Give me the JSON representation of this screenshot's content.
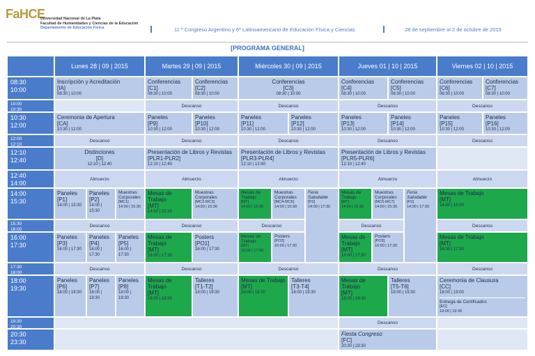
{
  "header": {
    "logo": "FaHCE",
    "university": "Universidad Nacional de La Plata",
    "faculty": "Facultad de Humanidades y Ciencias de la Educación",
    "department": "Departamento de Educación Física",
    "congress": "11 º Congreso Argentino y 6º Latinoamericano de Educación Física y Ciencias",
    "dates": "28 de septiembre al 2 de octubre de 2015"
  },
  "program_title": "[PROGRAMA GENERAL]",
  "days": [
    "Lunes 28 | 09 | 2015",
    "Martes 29 | 09 | 2015",
    "Miércoles 30 | 09 | 2015",
    "Jueves 01 | 10 | 2015",
    "Viernes 02 | 10 | 2015"
  ],
  "rows": [
    {
      "start": "08:30",
      "end": "10:00",
      "cells": [
        {
          "title": "Inscripción y Acreditación",
          "code": "[IA]",
          "time": "08:30 | 10:00"
        },
        {
          "title": "Conferencias",
          "code": "[C1]",
          "time": "08:30 | 10:00"
        },
        {
          "title": "Conferencias",
          "code": "[C2]",
          "time": "08:30 | 10:00"
        },
        {
          "title": "Conferencias",
          "code": "[C3]",
          "time": "08:30 | 10:00"
        },
        {
          "title": "Conferencias",
          "code": "[C4]",
          "time": "08:30 | 10:00"
        },
        {
          "title": "Conferencias",
          "code": "[C5]",
          "time": "08:30 | 10:00"
        },
        {
          "title": "Conferencias",
          "code": "[C6]",
          "time": "08:30 | 10:00"
        },
        {
          "title": "Conferencias",
          "code": "[C7]",
          "time": "08:30 | 10:00"
        }
      ]
    },
    {
      "start": "10:00",
      "end": "10:30",
      "cells": [
        {
          "title": "Descanso"
        },
        {
          "title": "Descanso"
        },
        {
          "title": "Descanso"
        },
        {
          "title": "Descanso"
        }
      ]
    },
    {
      "start": "10:30",
      "end": "12:00",
      "cells": [
        {
          "title": "Ceremonia de Apertura",
          "code": "[CA]",
          "time": "10:30 | 12:00"
        },
        {
          "title": "Paneles",
          "code": "[P9]",
          "time": "10:30 | 12:00"
        },
        {
          "title": "Paneles",
          "code": "[P10]",
          "time": "10:30 | 12:00"
        },
        {
          "title": "Paneles",
          "code": "[P11]",
          "time": "10:30 | 12:00"
        },
        {
          "title": "Paneles",
          "code": "[P12]",
          "time": "10:30 | 12:00"
        },
        {
          "title": "Paneles",
          "code": "[P13]",
          "time": "10:30 | 12:00"
        },
        {
          "title": "Paneles",
          "code": "[P14]",
          "time": "10:30 | 12:00"
        },
        {
          "title": "Paneles",
          "code": "[P15]",
          "time": "10:30 | 12:00"
        },
        {
          "title": "Paneles",
          "code": "[P16]",
          "time": "10:30 | 12:00"
        }
      ]
    },
    {
      "start": "12:00",
      "end": "12:10",
      "cells": [
        {
          "title": "Descanso"
        },
        {
          "title": "Descanso"
        },
        {
          "title": "Descanso"
        },
        {
          "title": "Descanso"
        },
        {
          "title": "Descanso"
        }
      ]
    },
    {
      "start": "12:10",
      "end": "12:40",
      "cells": [
        {
          "title": "Distinciones",
          "code": "[D]",
          "time": "12:10 | 12:40"
        },
        {
          "title": "Presentación de Libros y Revistas",
          "code": "[PLR1-PLR2]",
          "time": "12:10 | 12:40"
        },
        {
          "title": "Presentación de Libros y Revistas",
          "code": "[PLR3-PLR4]",
          "time": "12:10 | 12:40"
        },
        {
          "title": "Presentación de Libros y Revistas",
          "code": "[PLR5-PLR6]",
          "time": "12:10 | 12:40"
        }
      ]
    },
    {
      "start": "12:40",
      "end": "14:00",
      "cells": [
        {
          "title": "Almuerzo"
        },
        {
          "title": "Almuerzo"
        },
        {
          "title": "Almuerzo"
        },
        {
          "title": "Almuerzo"
        },
        {
          "title": "Almuerzo"
        }
      ]
    },
    {
      "start": "14:00",
      "end": "15:30",
      "cells": [
        {
          "title": "Paneles",
          "code": "[P1]",
          "time": "14:00 | 15:30"
        },
        {
          "title": "Paneles",
          "code": "[P2]",
          "time": "14:00 | 15:30"
        },
        {
          "title": "Muestras Corporales",
          "code": "[MC1]",
          "time": "14:00 | 15:30"
        },
        {
          "title": "Mesas de Trabajo",
          "code": "[MT]",
          "time": "14:00 | 15:30"
        },
        {
          "title": "Muestras Corporales",
          "code": "[MC2-MC3]",
          "time": "14:00 | 15:30"
        },
        {
          "title": "Mesas de Trabajo",
          "code": "[MT]",
          "time": "14:00 | 15:30"
        },
        {
          "title": "Muestras Corporales",
          "code": "[MC4-MC5]",
          "time": "14:00 | 15:30"
        },
        {
          "title": "Feria Saludable",
          "code": "[FS]",
          "time": "14:00 | 17:30"
        },
        {
          "title": "Mesas de Trabajo",
          "code": "[MT]",
          "time": "14:00 | 15:30"
        },
        {
          "title": "Muestras Corporales",
          "code": "[MC6-MC7]",
          "time": "14:00 | 15:30"
        },
        {
          "title": "Feria Saludable",
          "code": "[FS]",
          "time": "14:00 | 17:30"
        },
        {
          "title": "Mesas de Trabajo",
          "code": "[MT]",
          "time": "14:00 | 15:30"
        }
      ]
    },
    {
      "start": "15:30",
      "end": "16:00",
      "cells": [
        {
          "title": "Descanso"
        },
        {
          "title": "Descanso"
        },
        {
          "title": "Descanso"
        },
        {
          "title": "Descanso"
        },
        {
          "title": "Descanso"
        }
      ]
    },
    {
      "start": "16:00",
      "end": "17:30",
      "cells": [
        {
          "title": "Paneles",
          "code": "[P3]",
          "time": "16:00 | 17:30"
        },
        {
          "title": "Paneles",
          "code": "[P4]",
          "time": "16:00 | 17:30"
        },
        {
          "title": "Paneles",
          "code": "[P5]",
          "time": "16:00 | 17:30"
        },
        {
          "title": "Mesas de Trabajo",
          "code": "[MT]",
          "time": "16:00 | 17:30"
        },
        {
          "title": "Posters",
          "code": "[PO1]",
          "time": "16:00 | 17:30"
        },
        {
          "title": "Mesas de Trabajo",
          "code": "[MT]",
          "time": "16:00 | 17:30"
        },
        {
          "title": "Posters",
          "code": "[PO2]",
          "time": "16:00 | 17:30"
        },
        {
          "title": "Mesas de Trabajo",
          "code": "[MT]",
          "time": "16:00 | 17:30"
        },
        {
          "title": "Posters",
          "code": "[PO3]",
          "time": "16:00 | 17:30"
        },
        {
          "title": "Mesas de Trabajo",
          "code": "[MT]",
          "time": "16:00 | 17:30"
        }
      ]
    },
    {
      "start": "17:30",
      "end": "18:00",
      "cells": [
        {
          "title": "Descanso"
        },
        {
          "title": "Descanso"
        },
        {
          "title": "Descanso"
        },
        {
          "title": "Descanso"
        },
        {
          "title": "Descanso"
        }
      ]
    },
    {
      "start": "18:00",
      "end": "19:30",
      "cells": [
        {
          "title": "Paneles",
          "code": "[P6]",
          "time": "18:00 | 19:30"
        },
        {
          "title": "Paneles",
          "code": "[P7]",
          "time": "18:00 | 19:30"
        },
        {
          "title": "Paneles",
          "code": "[P8]",
          "time": "18:00 | 19:30"
        },
        {
          "title": "Mesas de Trabajo",
          "code": "[MT]",
          "time": "18:00 | 19:30"
        },
        {
          "title": "Talleres",
          "code": "[T1-T2]",
          "time": "18:00 | 19:30"
        },
        {
          "title": "Mesas de Trabajo",
          "code": "[MT]",
          "time": "18:00 | 19:30"
        },
        {
          "title": "Talleres",
          "code": "[T3-T4]",
          "time": "18:00 | 19:30"
        },
        {
          "title": "Mesas de Trabajo",
          "code": "[MT]",
          "time": "18:00 | 19:30"
        },
        {
          "title": "Talleres",
          "code": "[T5-T6]",
          "time": "18:00 | 19:30"
        },
        {
          "title": "Ceremonia de Clausura",
          "code": "[CC]",
          "time": "18:00 | 19:00",
          "note_title": "Entrega de Certificados",
          "note_code": "[EC]",
          "note_time": "19:00 | 19:30"
        }
      ]
    },
    {
      "start": "19:30",
      "end": "20:30",
      "cells": [
        {
          "title": "Descanso"
        }
      ]
    },
    {
      "start": "20:30",
      "end": "23:30",
      "cells": [
        {
          "title": "Fiesta Congreso",
          "code": "[FC]",
          "time": "20:30 | 23:30"
        }
      ]
    }
  ]
}
